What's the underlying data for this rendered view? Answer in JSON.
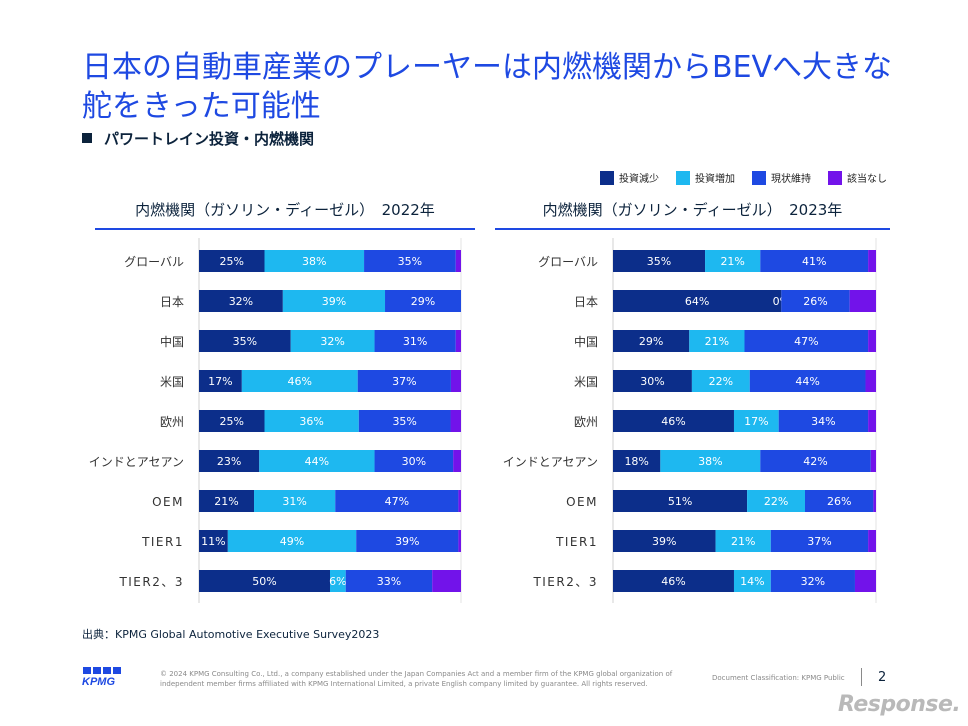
{
  "title": "日本の自動車産業のプレーヤーは内燃機関からBEVへ大きな舵をきった可能性",
  "subtitle": "パワートレイン投資・内燃機関",
  "legend": [
    {
      "label": "投資減少",
      "color": "#0c2e8a"
    },
    {
      "label": "投資増加",
      "color": "#1eb8f0"
    },
    {
      "label": "現状維持",
      "color": "#1e49e2"
    },
    {
      "label": "該当なし",
      "color": "#7213ea"
    }
  ],
  "chart_data": [
    {
      "type": "bar",
      "stacked": true,
      "orientation": "horizontal",
      "title": "内燃機関（ガソリン・ディーゼル）　2022年",
      "categories": [
        "グローバル",
        "日本",
        "中国",
        "米国",
        "欧州",
        "インドとアセアン",
        "OEM",
        "TIER1",
        "TIER2、3"
      ],
      "series": [
        {
          "name": "投資減少",
          "values": [
            25,
            32,
            35,
            17,
            25,
            23,
            21,
            11,
            50
          ]
        },
        {
          "name": "投資増加",
          "values": [
            38,
            39,
            32,
            46,
            36,
            44,
            31,
            49,
            6
          ]
        },
        {
          "name": "現状維持",
          "values": [
            35,
            29,
            31,
            37,
            35,
            30,
            47,
            39,
            33
          ]
        },
        {
          "name": "該当なし",
          "values": [
            2,
            0,
            2,
            4,
            4,
            3,
            1,
            1,
            11
          ]
        }
      ],
      "labels": [
        [
          "25%",
          "38%",
          "35%",
          ""
        ],
        [
          "32%",
          "39%",
          "29%",
          ""
        ],
        [
          "35%",
          "32%",
          "31%",
          ""
        ],
        [
          "17%",
          "46%",
          "37%",
          ""
        ],
        [
          "25%",
          "36%",
          "35%",
          ""
        ],
        [
          "23%",
          "44%",
          "30%",
          ""
        ],
        [
          "21%",
          "31%",
          "47%",
          ""
        ],
        [
          "11%",
          "49%",
          "39%",
          ""
        ],
        [
          "50%",
          "6%",
          "33%",
          ""
        ]
      ],
      "xlim": [
        0,
        100
      ]
    },
    {
      "type": "bar",
      "stacked": true,
      "orientation": "horizontal",
      "title": "内燃機関（ガソリン・ディーゼル）　2023年",
      "categories": [
        "グローバル",
        "日本",
        "中国",
        "米国",
        "欧州",
        "インドとアセアン",
        "OEM",
        "TIER1",
        "TIER2、3"
      ],
      "series": [
        {
          "name": "投資減少",
          "values": [
            35,
            64,
            29,
            30,
            46,
            18,
            51,
            39,
            46
          ]
        },
        {
          "name": "投資増加",
          "values": [
            21,
            0,
            21,
            22,
            17,
            38,
            22,
            21,
            14
          ]
        },
        {
          "name": "現状維持",
          "values": [
            41,
            26,
            47,
            44,
            34,
            42,
            26,
            37,
            32
          ]
        },
        {
          "name": "該当なし",
          "values": [
            3,
            10,
            3,
            4,
            3,
            2,
            1,
            3,
            8
          ]
        }
      ],
      "labels": [
        [
          "35%",
          "21%",
          "41%",
          ""
        ],
        [
          "64%",
          "0%",
          "26%",
          ""
        ],
        [
          "29%",
          "21%",
          "47%",
          ""
        ],
        [
          "30%",
          "22%",
          "44%",
          ""
        ],
        [
          "46%",
          "17%",
          "34%",
          ""
        ],
        [
          "18%",
          "38%",
          "42%",
          ""
        ],
        [
          "51%",
          "22%",
          "26%",
          ""
        ],
        [
          "39%",
          "21%",
          "37%",
          ""
        ],
        [
          "46%",
          "14%",
          "32%",
          ""
        ]
      ],
      "xlim": [
        0,
        100
      ]
    }
  ],
  "source": "出典：KPMG Global Automotive Executive Survey2023",
  "logo_text": "KPMG",
  "copyright": "© 2024 KPMG Consulting Co., Ltd., a company established under the Japan Companies Act and a member firm of the KPMG global organization of independent member firms affiliated with KPMG International Limited, a private English company limited by guarantee. All rights reserved.",
  "classification": "Document Classification: KPMG Public",
  "page_number": "2",
  "watermark": "Response."
}
